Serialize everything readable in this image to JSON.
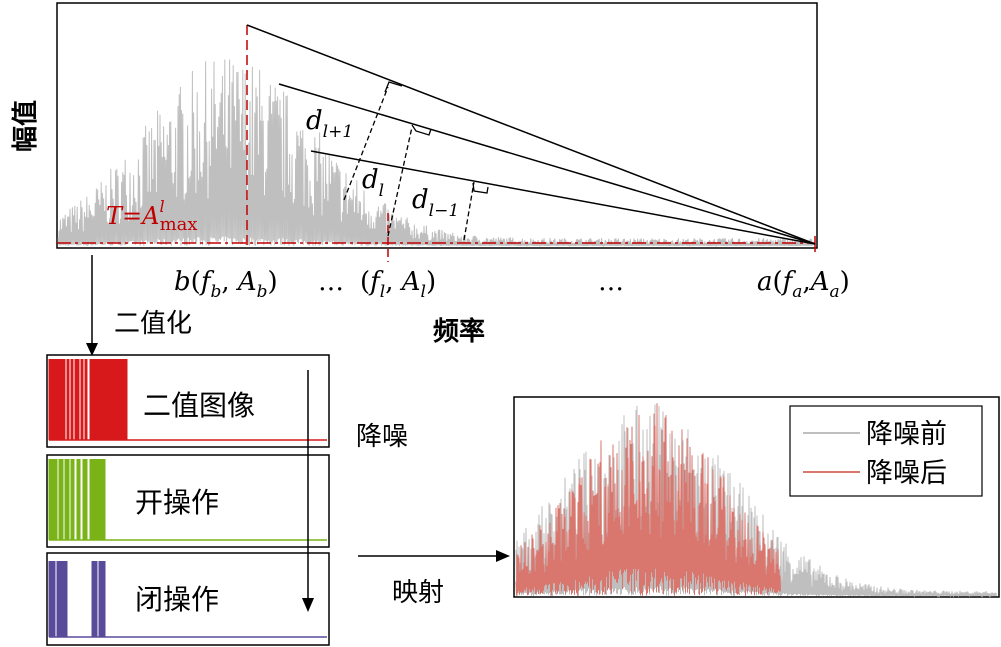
{
  "top_chart": {
    "ylabel": "幅值",
    "xlabel": "频率",
    "threshold_T": "T",
    "threshold_eq": "=",
    "threshold_A": "A",
    "threshold_sup": "l",
    "threshold_sub": "max",
    "point_b": {
      "name": "b",
      "f": "f",
      "fsub": "b",
      "A": "A",
      "Asub": "b"
    },
    "point_l": {
      "f": "f",
      "fsub": "l",
      "A": "A",
      "Asub": "l"
    },
    "point_a": {
      "name": "a",
      "f": "f",
      "fsub": "a",
      "A": "A",
      "Asub": "a"
    },
    "ellipsis": "…",
    "dist_labels": [
      {
        "d": "d",
        "sub": "l+1"
      },
      {
        "d": "d",
        "sub": "l"
      },
      {
        "d": "d",
        "sub": "l−1"
      }
    ]
  },
  "binarize_label": "二值化",
  "denoise_label": "降噪",
  "mapping_label": "映射",
  "process_steps": [
    {
      "label": "二值图像",
      "color": "#d7191c"
    },
    {
      "label": "开操作",
      "color": "#7ab317"
    },
    {
      "label": "闭操作",
      "color": "#5a4b9a"
    }
  ],
  "result_chart": {
    "legend": [
      {
        "label": "降噪前",
        "color": "#bfbfbf"
      },
      {
        "label": "降噪后",
        "color": "#d9776f"
      }
    ]
  },
  "colors": {
    "spectrum": "#bfbfbf",
    "threshold": "#c00000",
    "axis": "#000000"
  }
}
